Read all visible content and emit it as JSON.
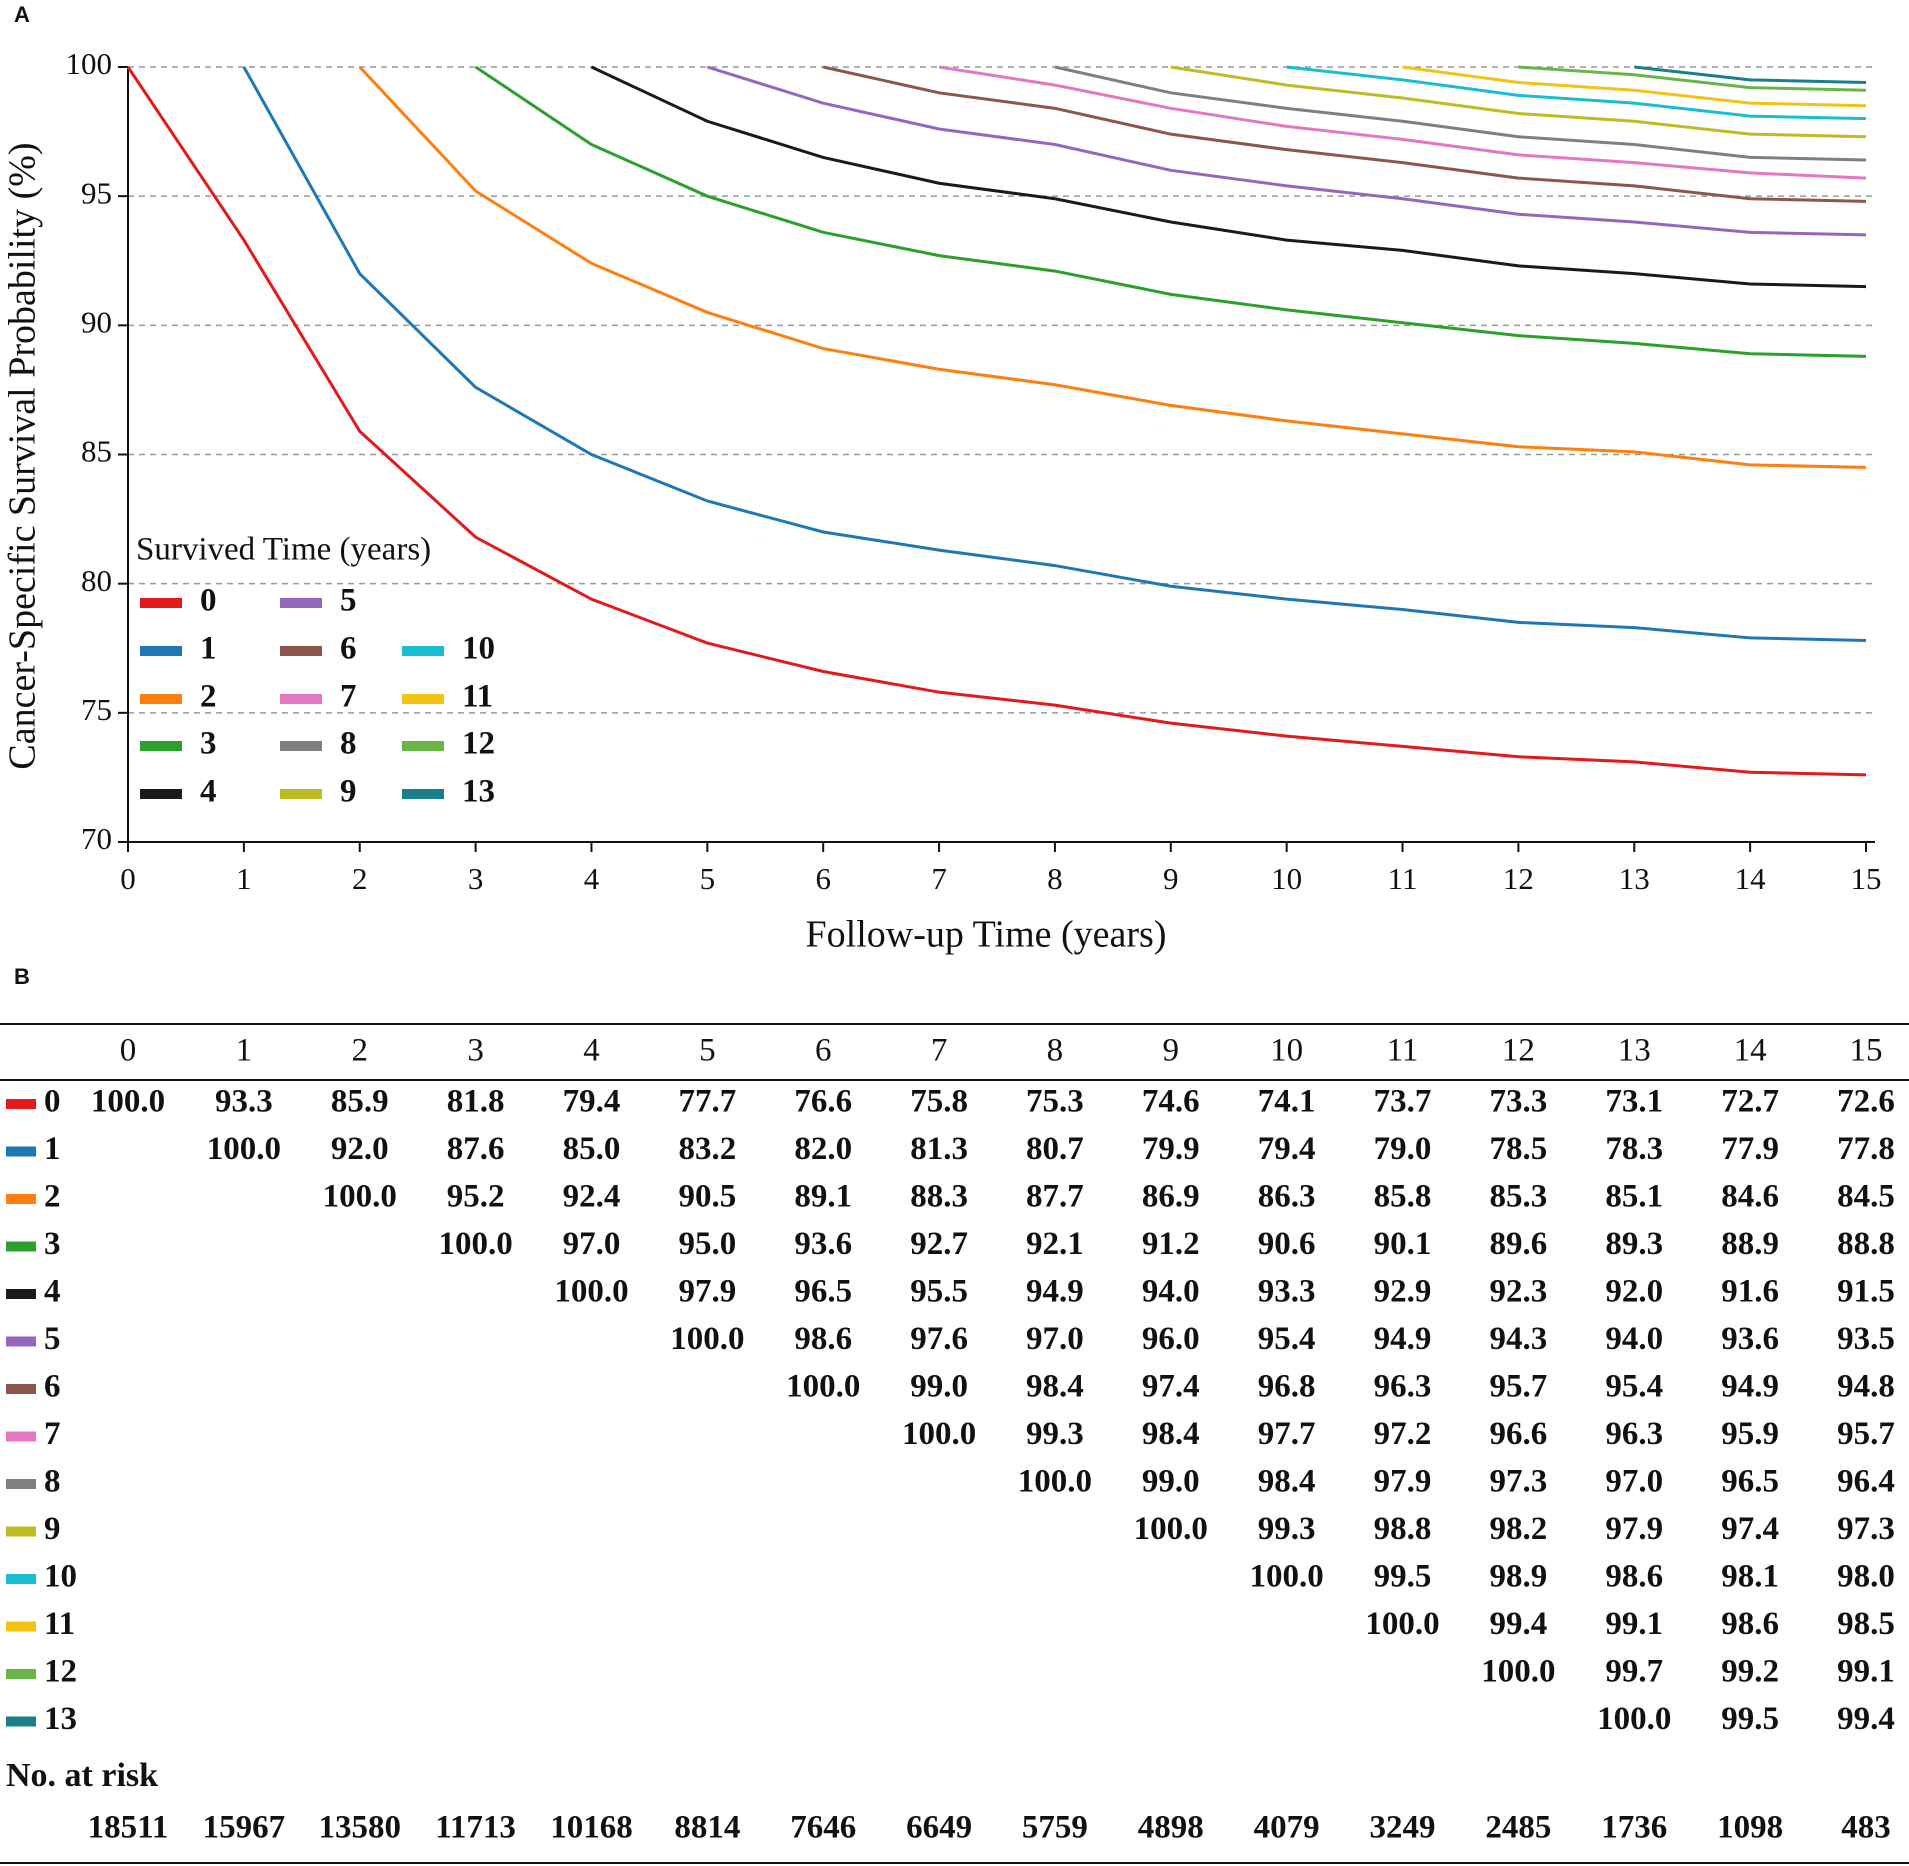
{
  "chart_data": {
    "type": "line",
    "panel_label": "A",
    "ylabel": "Cancer-Specific Survival Probability (%)",
    "xlabel": "Follow-up Time (years)",
    "legend_title": "Survived Time (years)",
    "x": [
      0,
      1,
      2,
      3,
      4,
      5,
      6,
      7,
      8,
      9,
      10,
      11,
      12,
      13,
      14,
      15
    ],
    "xlim": [
      0,
      15
    ],
    "xticks": [
      0,
      1,
      2,
      3,
      4,
      5,
      6,
      7,
      8,
      9,
      10,
      11,
      12,
      13,
      14,
      15
    ],
    "ylim": [
      70,
      100
    ],
    "yticks": [
      70,
      75,
      80,
      85,
      90,
      95,
      100
    ],
    "grid": true,
    "legend_position": "lower left",
    "series": [
      {
        "name": "0",
        "color": "#e31a1c",
        "values": [
          100.0,
          93.3,
          85.9,
          81.8,
          79.4,
          77.7,
          76.6,
          75.8,
          75.3,
          74.6,
          74.1,
          73.7,
          73.3,
          73.1,
          72.7,
          72.6
        ],
        "value_labels": [
          "100.0",
          "93.3",
          "85.9",
          "81.8",
          "79.4",
          "77.7",
          "76.6",
          "75.8",
          "75.3",
          "74.6",
          "74.1",
          "73.7",
          "73.3",
          "73.1",
          "72.7",
          "72.6"
        ]
      },
      {
        "name": "1",
        "color": "#1f78b4",
        "values": [
          null,
          100.0,
          92.0,
          87.6,
          85.0,
          83.2,
          82.0,
          81.3,
          80.7,
          79.9,
          79.4,
          79.0,
          78.5,
          78.3,
          77.9,
          77.8
        ],
        "value_labels": [
          null,
          "100.0",
          "92.0",
          "87.6",
          "85.0",
          "83.2",
          "82.0",
          "81.3",
          "80.7",
          "79.9",
          "79.4",
          "79.0",
          "78.5",
          "78.3",
          "77.9",
          "77.8"
        ]
      },
      {
        "name": "2",
        "color": "#ff7f0e",
        "values": [
          null,
          null,
          100.0,
          95.2,
          92.4,
          90.5,
          89.1,
          88.3,
          87.7,
          86.9,
          86.3,
          85.8,
          85.3,
          85.1,
          84.6,
          84.5
        ],
        "value_labels": [
          null,
          null,
          "100.0",
          "95.2",
          "92.4",
          "90.5",
          "89.1",
          "88.3",
          "87.7",
          "86.9",
          "86.3",
          "85.8",
          "85.3",
          "85.1",
          "84.6",
          "84.5"
        ]
      },
      {
        "name": "3",
        "color": "#2ca02c",
        "values": [
          null,
          null,
          null,
          100.0,
          97.0,
          95.0,
          93.6,
          92.7,
          92.1,
          91.2,
          90.6,
          90.1,
          89.6,
          89.3,
          88.9,
          88.8
        ],
        "value_labels": [
          null,
          null,
          null,
          "100.0",
          "97.0",
          "95.0",
          "93.6",
          "92.7",
          "92.1",
          "91.2",
          "90.6",
          "90.1",
          "89.6",
          "89.3",
          "88.9",
          "88.8"
        ]
      },
      {
        "name": "4",
        "color": "#1a1a1a",
        "values": [
          null,
          null,
          null,
          null,
          100.0,
          97.9,
          96.5,
          95.5,
          94.9,
          94.0,
          93.3,
          92.9,
          92.3,
          92.0,
          91.6,
          91.5
        ],
        "value_labels": [
          null,
          null,
          null,
          null,
          "100.0",
          "97.9",
          "96.5",
          "95.5",
          "94.9",
          "94.0",
          "93.3",
          "92.9",
          "92.3",
          "92.0",
          "91.6",
          "91.5"
        ]
      },
      {
        "name": "5",
        "color": "#9467bd",
        "values": [
          null,
          null,
          null,
          null,
          null,
          100.0,
          98.6,
          97.6,
          97.0,
          96.0,
          95.4,
          94.9,
          94.3,
          94.0,
          93.6,
          93.5
        ],
        "value_labels": [
          null,
          null,
          null,
          null,
          null,
          "100.0",
          "98.6",
          "97.6",
          "97.0",
          "96.0",
          "95.4",
          "94.9",
          "94.3",
          "94.0",
          "93.6",
          "93.5"
        ]
      },
      {
        "name": "6",
        "color": "#8c564b",
        "values": [
          null,
          null,
          null,
          null,
          null,
          null,
          100.0,
          99.0,
          98.4,
          97.4,
          96.8,
          96.3,
          95.7,
          95.4,
          94.9,
          94.8
        ],
        "value_labels": [
          null,
          null,
          null,
          null,
          null,
          null,
          "100.0",
          "99.0",
          "98.4",
          "97.4",
          "96.8",
          "96.3",
          "95.7",
          "95.4",
          "94.9",
          "94.8"
        ]
      },
      {
        "name": "7",
        "color": "#e377c2",
        "values": [
          null,
          null,
          null,
          null,
          null,
          null,
          null,
          100.0,
          99.3,
          98.4,
          97.7,
          97.2,
          96.6,
          96.3,
          95.9,
          95.7
        ],
        "value_labels": [
          null,
          null,
          null,
          null,
          null,
          null,
          null,
          "100.0",
          "99.3",
          "98.4",
          "97.7",
          "97.2",
          "96.6",
          "96.3",
          "95.9",
          "95.7"
        ]
      },
      {
        "name": "8",
        "color": "#7f7f7f",
        "values": [
          null,
          null,
          null,
          null,
          null,
          null,
          null,
          null,
          100.0,
          99.0,
          98.4,
          97.9,
          97.3,
          97.0,
          96.5,
          96.4
        ],
        "value_labels": [
          null,
          null,
          null,
          null,
          null,
          null,
          null,
          null,
          "100.0",
          "99.0",
          "98.4",
          "97.9",
          "97.3",
          "97.0",
          "96.5",
          "96.4"
        ]
      },
      {
        "name": "9",
        "color": "#bcbd22",
        "values": [
          null,
          null,
          null,
          null,
          null,
          null,
          null,
          null,
          null,
          100.0,
          99.3,
          98.8,
          98.2,
          97.9,
          97.4,
          97.3
        ],
        "value_labels": [
          null,
          null,
          null,
          null,
          null,
          null,
          null,
          null,
          null,
          "100.0",
          "99.3",
          "98.8",
          "98.2",
          "97.9",
          "97.4",
          "97.3"
        ]
      },
      {
        "name": "10",
        "color": "#17becf",
        "values": [
          null,
          null,
          null,
          null,
          null,
          null,
          null,
          null,
          null,
          null,
          100.0,
          99.5,
          98.9,
          98.6,
          98.1,
          98.0
        ],
        "value_labels": [
          null,
          null,
          null,
          null,
          null,
          null,
          null,
          null,
          null,
          null,
          "100.0",
          "99.5",
          "98.9",
          "98.6",
          "98.1",
          "98.0"
        ]
      },
      {
        "name": "11",
        "color": "#f2c314",
        "values": [
          null,
          null,
          null,
          null,
          null,
          null,
          null,
          null,
          null,
          null,
          null,
          100.0,
          99.4,
          99.1,
          98.6,
          98.5
        ],
        "value_labels": [
          null,
          null,
          null,
          null,
          null,
          null,
          null,
          null,
          null,
          null,
          null,
          "100.0",
          "99.4",
          "99.1",
          "98.6",
          "98.5"
        ]
      },
      {
        "name": "12",
        "color": "#6ab547",
        "values": [
          null,
          null,
          null,
          null,
          null,
          null,
          null,
          null,
          null,
          null,
          null,
          null,
          100.0,
          99.7,
          99.2,
          99.1
        ],
        "value_labels": [
          null,
          null,
          null,
          null,
          null,
          null,
          null,
          null,
          null,
          null,
          null,
          null,
          "100.0",
          "99.7",
          "99.2",
          "99.1"
        ]
      },
      {
        "name": "13",
        "color": "#1a7f8a",
        "values": [
          null,
          null,
          null,
          null,
          null,
          null,
          null,
          null,
          null,
          null,
          null,
          null,
          null,
          100.0,
          99.5,
          99.4
        ],
        "value_labels": [
          null,
          null,
          null,
          null,
          null,
          null,
          null,
          null,
          null,
          null,
          null,
          null,
          null,
          "100.0",
          "99.5",
          "99.4"
        ]
      }
    ]
  },
  "table": {
    "panel_label": "B",
    "risk_title": "No. at risk",
    "risk": [
      18511,
      15967,
      13580,
      11713,
      10168,
      8814,
      7646,
      6649,
      5759,
      4898,
      4079,
      3249,
      2485,
      1736,
      1098,
      483
    ]
  }
}
